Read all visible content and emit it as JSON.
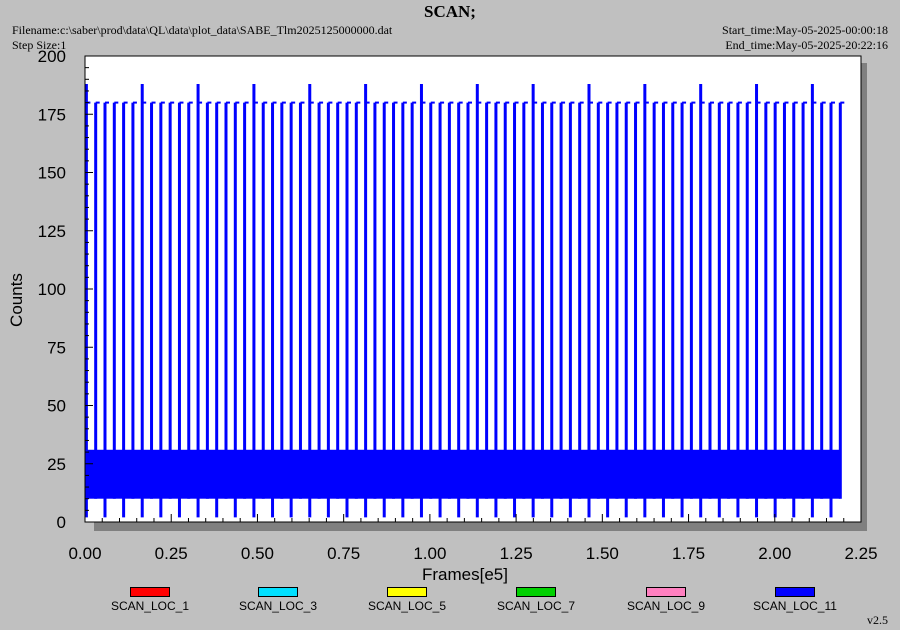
{
  "header": {
    "title": "SCAN;",
    "filename": "Filename:c:\\saber\\prod\\data\\QL\\data\\plot_data\\SABE_Tlm2025125000000.dat",
    "step_size": "Step Size:1",
    "start_time": "Start_time:May-05-2025-00:00:18",
    "end_time": "End_time:May-05-2025-20:22:16"
  },
  "chart_data": {
    "type": "line",
    "title": "SCAN;",
    "xlabel": "Frames[e5]",
    "ylabel": "Counts",
    "xlim": [
      0,
      2.25
    ],
    "ylim": [
      0,
      200
    ],
    "x_ticks": [
      "0.00",
      "0.25",
      "0.50",
      "0.75",
      "1.00",
      "1.25",
      "1.50",
      "1.75",
      "2.00",
      "2.25"
    ],
    "y_ticks": [
      "0",
      "25",
      "50",
      "75",
      "100",
      "125",
      "150",
      "175",
      "200"
    ],
    "grid": false,
    "x_end": 2.19,
    "pulses": {
      "count": 82,
      "peak_values": [
        180,
        188
      ],
      "low_values": [
        2,
        10
      ],
      "band": [
        10,
        31
      ]
    },
    "series": [
      {
        "name": "SCAN_LOC_1",
        "color": "#ff0000"
      },
      {
        "name": "SCAN_LOC_3",
        "color": "#00e0ff"
      },
      {
        "name": "SCAN_LOC_5",
        "color": "#ffff00"
      },
      {
        "name": "SCAN_LOC_7",
        "color": "#00d000"
      },
      {
        "name": "SCAN_LOC_9",
        "color": "#ff80c0"
      },
      {
        "name": "SCAN_LOC_11",
        "color": "#0000ff"
      }
    ]
  },
  "footer": {
    "version": "v2.5"
  }
}
